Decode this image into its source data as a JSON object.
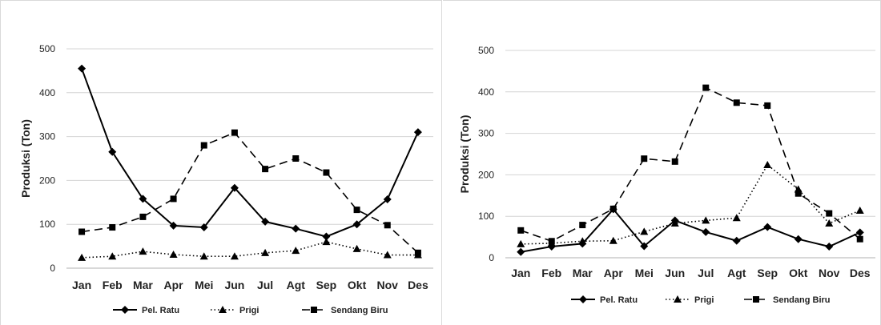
{
  "chart_data": [
    {
      "type": "line",
      "title": "",
      "xlabel": "",
      "ylabel": "Produksi (Ton)",
      "ylim": [
        0,
        500
      ],
      "yticks": [
        0,
        100,
        200,
        300,
        400,
        500
      ],
      "grid": true,
      "legend_position": "bottom",
      "categories": [
        "Jan",
        "Feb",
        "Mar",
        "Apr",
        "Mei",
        "Jun",
        "Jul",
        "Agt",
        "Sep",
        "Okt",
        "Nov",
        "Des"
      ],
      "series": [
        {
          "name": "Pel. Ratu",
          "marker": "diamond",
          "dash": "solid",
          "color": "#000000",
          "values": [
            455,
            265,
            158,
            97,
            93,
            183,
            106,
            90,
            72,
            100,
            157,
            310
          ]
        },
        {
          "name": "Prigi",
          "marker": "triangle",
          "dash": "dotted",
          "color": "#000000",
          "values": [
            24,
            27,
            38,
            31,
            27,
            27,
            35,
            40,
            60,
            44,
            30,
            30
          ]
        },
        {
          "name": "Sendang Biru",
          "marker": "square",
          "dash": "dashed",
          "color": "#000000",
          "values": [
            83,
            93,
            117,
            158,
            280,
            309,
            226,
            250,
            218,
            133,
            98,
            35
          ]
        }
      ]
    },
    {
      "type": "line",
      "title": "",
      "xlabel": "",
      "ylabel": "Produksi (Ton)",
      "ylim": [
        0,
        500
      ],
      "yticks": [
        0,
        100,
        200,
        300,
        400,
        500
      ],
      "grid": true,
      "legend_position": "bottom",
      "categories": [
        "Jan",
        "Feb",
        "Mar",
        "Apr",
        "Mei",
        "Jun",
        "Jul",
        "Agt",
        "Sep",
        "Okt",
        "Nov",
        "Des"
      ],
      "series": [
        {
          "name": "Pel. Ratu",
          "marker": "diamond",
          "dash": "solid",
          "color": "#000000",
          "values": [
            14,
            27,
            34,
            117,
            28,
            90,
            62,
            41,
            74,
            45,
            27,
            61
          ]
        },
        {
          "name": "Prigi",
          "marker": "triangle",
          "dash": "dotted",
          "color": "#000000",
          "values": [
            33,
            35,
            40,
            41,
            63,
            83,
            90,
            96,
            224,
            165,
            83,
            114
          ]
        },
        {
          "name": "Sendang Biru",
          "marker": "square",
          "dash": "dashed",
          "color": "#000000",
          "values": [
            66,
            40,
            79,
            118,
            239,
            232,
            410,
            374,
            367,
            155,
            107,
            45
          ]
        }
      ]
    }
  ]
}
